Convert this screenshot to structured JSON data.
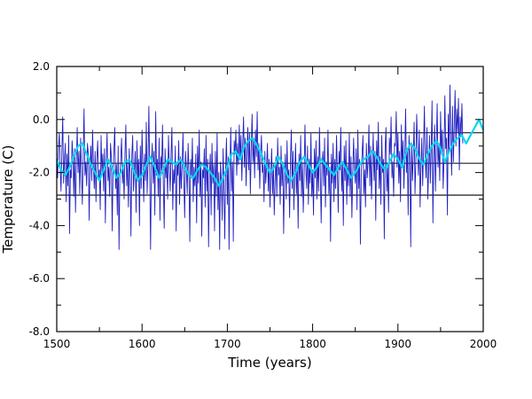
{
  "chart_data": {
    "type": "line",
    "title": "",
    "xlabel": "Time (years)",
    "ylabel": "Temperature (C)",
    "xlim": [
      1500,
      2000
    ],
    "ylim": [
      -8.0,
      2.0
    ],
    "x_ticks": [
      1500,
      1600,
      1700,
      1800,
      1900,
      2000
    ],
    "x_tick_labels": [
      "1500",
      "1600",
      "1700",
      "1800",
      "1900",
      "2000"
    ],
    "y_ticks": [
      2.0,
      0.0,
      -2.0,
      -4.0,
      -6.0,
      -8.0
    ],
    "y_tick_labels": [
      "2.0",
      "0.0",
      "-2.0",
      "-4.0",
      "-6.0",
      "-8.0"
    ],
    "grid": false,
    "legend": "none",
    "reference_lines": [
      {
        "y": -0.5,
        "color": "#000000"
      },
      {
        "y": -1.65,
        "color": "#000000"
      },
      {
        "y": -2.85,
        "color": "#000000"
      }
    ],
    "series": [
      {
        "color": "#2020c0",
        "x_start": 1500,
        "x_step": 1,
        "y": [
          -1.4,
          -2.2,
          -1.1,
          -0.5,
          -1.8,
          -2.7,
          -1.2,
          0.1,
          -2.4,
          -1.6,
          -0.9,
          -3.1,
          -1.3,
          -2.5,
          -0.6,
          -4.3,
          -1.9,
          -2.2,
          -0.8,
          -1.4,
          -2.9,
          -1.1,
          -3.5,
          -1.6,
          -0.3,
          -2.0,
          -1.2,
          -2.8,
          -0.7,
          -1.9,
          -3.2,
          -1.4,
          0.4,
          -2.1,
          -1.6,
          -2.5,
          -0.9,
          -1.3,
          -3.8,
          -1.7,
          -1.0,
          -2.3,
          -0.4,
          -1.8,
          -2.6,
          -1.2,
          -3.1,
          -1.5,
          -0.8,
          -2.2,
          -1.9,
          -3.4,
          -0.6,
          -2.0,
          -1.3,
          -2.7,
          -1.1,
          -3.9,
          -1.6,
          -0.5,
          -2.3,
          -1.8,
          -2.9,
          -0.9,
          -1.4,
          -4.2,
          -2.0,
          -1.2,
          -0.3,
          -2.6,
          -1.7,
          -3.6,
          -1.0,
          -4.9,
          -2.1,
          -1.5,
          -0.7,
          -2.4,
          -1.8,
          -3.0,
          -1.3,
          -0.2,
          -2.5,
          -1.6,
          -3.3,
          -1.1,
          -2.0,
          -4.4,
          -1.4,
          -0.6,
          -2.7,
          -1.9,
          -1.2,
          -3.5,
          -0.8,
          -2.2,
          -1.5,
          -4.0,
          -1.0,
          -2.6,
          -0.4,
          -1.8,
          -3.1,
          -1.3,
          -2.3,
          -0.1,
          -2.8,
          -1.6,
          0.5,
          -2.0,
          -4.9,
          -1.7,
          -0.9,
          -2.4,
          -1.2,
          -3.6,
          0.3,
          -2.1,
          -1.5,
          -2.9,
          -0.7,
          -3.8,
          -1.4,
          -1.9,
          -0.2,
          -2.5,
          -4.1,
          -1.1,
          -2.2,
          -1.6,
          -3.0,
          -0.6,
          -1.8,
          -2.7,
          -1.3,
          -0.3,
          -3.4,
          -1.9,
          -2.4,
          -1.0,
          -4.2,
          -1.6,
          -2.1,
          -0.8,
          -3.2,
          -1.4,
          -2.6,
          -1.7,
          -0.5,
          -2.3,
          -3.7,
          -1.2,
          -1.9,
          -2.8,
          -0.9,
          -2.0,
          -4.6,
          -1.5,
          -2.2,
          -0.7,
          -3.1,
          -1.8,
          -2.5,
          -1.3,
          -3.9,
          -1.0,
          -2.4,
          -0.4,
          -2.9,
          -1.6,
          -4.4,
          -1.9,
          -2.2,
          -1.1,
          -3.3,
          -0.6,
          -2.7,
          -1.5,
          -4.8,
          -2.0,
          -1.3,
          -3.6,
          -0.9,
          -2.4,
          -1.7,
          -4.2,
          -1.2,
          -2.9,
          -0.5,
          -3.4,
          -2.0,
          -4.9,
          -1.6,
          -2.3,
          -3.8,
          -1.1,
          -2.6,
          -4.5,
          -1.8,
          -0.7,
          -3.2,
          -1.4,
          -4.9,
          -2.0,
          -0.3,
          -2.7,
          -1.6,
          -4.6,
          -0.8,
          -1.3,
          -0.4,
          -2.1,
          -0.9,
          -1.7,
          -0.2,
          -1.5,
          -0.6,
          -2.3,
          -1.0,
          0.1,
          -1.8,
          -0.7,
          -2.5,
          -1.2,
          -0.3,
          -1.9,
          -0.5,
          -2.8,
          -1.1,
          0.2,
          -1.6,
          -0.8,
          -2.2,
          -0.4,
          -1.4,
          0.3,
          -1.9,
          -0.9,
          -2.6,
          -1.3,
          -0.6,
          -2.0,
          -1.7,
          -3.1,
          -1.2,
          -2.4,
          -1.8,
          -0.9,
          -2.7,
          -1.5,
          -3.3,
          -2.0,
          -1.1,
          -2.8,
          -1.7,
          -3.6,
          -2.3,
          -1.4,
          -2.9,
          -0.7,
          -2.1,
          -1.8,
          -3.2,
          -1.0,
          -2.5,
          -1.6,
          -4.3,
          -2.2,
          -1.3,
          -3.0,
          -0.8,
          -2.4,
          -1.9,
          -3.7,
          -1.5,
          -0.4,
          -2.6,
          -1.2,
          -3.4,
          -2.0,
          -0.9,
          -2.8,
          -1.7,
          -4.1,
          -1.3,
          -2.3,
          -0.6,
          -2.9,
          -1.6,
          -3.5,
          -2.2,
          -0.2,
          -1.8,
          -2.6,
          -1.0,
          -3.2,
          -1.5,
          -2.4,
          -0.5,
          -2.9,
          -1.9,
          -3.6,
          -1.1,
          -2.2,
          -0.8,
          -3.0,
          -1.4,
          -2.7,
          -0.3,
          -2.0,
          -3.9,
          -1.7,
          -1.2,
          -2.5,
          -0.7,
          -3.3,
          -1.6,
          -2.1,
          -0.4,
          -2.8,
          -1.8,
          -4.6,
          -1.3,
          -2.4,
          -0.9,
          -3.1,
          -1.5,
          -2.6,
          -0.6,
          -2.0,
          -3.5,
          -1.2,
          -1.9,
          -0.3,
          -2.7,
          -1.6,
          -4.0,
          -1.0,
          -2.3,
          -0.8,
          -3.2,
          -1.7,
          -2.5,
          -0.5,
          -2.9,
          -1.4,
          -3.7,
          -2.1,
          -0.7,
          -1.8,
          -2.4,
          -1.1,
          -3.4,
          -0.4,
          -2.6,
          -1.5,
          -4.7,
          -2.0,
          -1.3,
          -0.6,
          -2.8,
          -1.9,
          -3.3,
          -0.9,
          -2.2,
          -1.6,
          -0.2,
          -2.5,
          -1.0,
          -3.0,
          -1.7,
          -0.5,
          -2.3,
          -1.2,
          -3.8,
          -0.8,
          -1.9,
          -0.1,
          -2.6,
          -1.4,
          -3.2,
          -0.6,
          -2.0,
          -1.5,
          -4.5,
          -1.1,
          -0.3,
          -2.7,
          -1.8,
          -3.5,
          -0.7,
          -1.3,
          0.1,
          -2.2,
          -1.6,
          -2.9,
          -0.9,
          -1.0,
          0.3,
          -1.8,
          -0.5,
          -2.4,
          -1.2,
          -3.1,
          -0.2,
          -1.7,
          -0.8,
          -2.6,
          -1.4,
          0.4,
          -2.0,
          -1.1,
          -3.6,
          -0.6,
          -1.5,
          -4.8,
          -0.9,
          -2.3,
          -1.3,
          -0.1,
          -2.8,
          -1.6,
          0.2,
          -1.0,
          -2.1,
          -0.4,
          -3.3,
          -1.8,
          -0.7,
          -2.5,
          -1.2,
          0.5,
          -1.5,
          -2.2,
          -0.3,
          -3.0,
          -1.9,
          -0.6,
          -2.4,
          -1.1,
          0.7,
          -3.9,
          -1.4,
          -0.2,
          -2.7,
          -1.0,
          0.6,
          -1.8,
          -0.9,
          -2.3,
          0.3,
          -1.3,
          -0.4,
          -2.6,
          -1.5,
          0.9,
          -1.1,
          -0.7,
          -3.6,
          0.2,
          -1.2,
          1.3,
          -0.8,
          -2.1,
          0.5,
          -1.6,
          -0.3,
          1.1,
          -1.0,
          0.4,
          -0.5,
          0.8,
          -1.9,
          0.1,
          -0.6,
          0.6,
          -0.9
        ]
      },
      {
        "color": "#00d8f0",
        "x_start": 1500,
        "x_step": 5,
        "y": [
          -1.5,
          -1.9,
          -2.1,
          -1.8,
          -1.4,
          -1.0,
          -0.9,
          -1.3,
          -1.7,
          -2.0,
          -2.3,
          -1.9,
          -1.5,
          -1.8,
          -2.2,
          -2.0,
          -1.6,
          -1.5,
          -1.9,
          -2.3,
          -2.1,
          -1.7,
          -1.4,
          -1.8,
          -2.2,
          -1.9,
          -1.5,
          -1.6,
          -1.7,
          -1.5,
          -1.8,
          -2.1,
          -2.2,
          -1.9,
          -1.7,
          -1.8,
          -2.0,
          -2.2,
          -2.5,
          -2.2,
          -1.8,
          -1.3,
          -1.2,
          -1.5,
          -1.0,
          -0.8,
          -0.7,
          -1.0,
          -1.3,
          -1.7,
          -2.0,
          -1.8,
          -1.4,
          -1.7,
          -2.1,
          -2.3,
          -2.0,
          -1.6,
          -1.4,
          -1.7,
          -2.0,
          -1.8,
          -1.5,
          -1.7,
          -1.9,
          -2.1,
          -1.8,
          -1.6,
          -1.9,
          -2.2,
          -2.0,
          -1.7,
          -1.5,
          -1.4,
          -1.2,
          -1.4,
          -1.7,
          -1.9,
          -1.6,
          -1.3,
          -1.5,
          -1.8,
          -1.2,
          -0.9,
          -1.1,
          -1.5,
          -1.7,
          -1.3,
          -1.0,
          -0.8,
          -1.1,
          -1.6,
          -1.2,
          -0.9,
          -0.7,
          -0.6,
          -0.9,
          -0.6,
          -0.3,
          0.0,
          -0.4
        ]
      }
    ]
  }
}
